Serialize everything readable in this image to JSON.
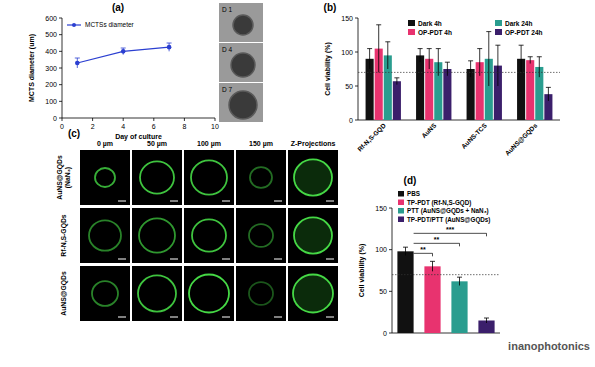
{
  "chart_data": [
    {
      "type": "line",
      "title": "(a)",
      "x": [
        1,
        4,
        7
      ],
      "series": [
        {
          "name": "MCTSs diameter",
          "color": "#2b3fd1",
          "values": [
            330,
            400,
            425
          ],
          "errors": [
            30,
            20,
            25
          ],
          "marker": "circle",
          "line_style": "solid"
        }
      ],
      "xlim": [
        0,
        10
      ],
      "xticks": [
        0,
        2,
        4,
        6,
        8,
        10
      ],
      "ylim": [
        0,
        600
      ],
      "yticks": [
        0,
        100,
        200,
        300,
        400,
        500,
        600
      ],
      "x_label": "Day of culture",
      "y_label": "MCTS diameter (um)",
      "legend": "upper left",
      "insets": [
        "D 1",
        "D 4",
        "D 7"
      ]
    },
    {
      "type": "bar",
      "title": "(b)",
      "categories": [
        "Rf-N,S-GQD",
        "AuNS",
        "AuNS-TCS",
        "AuNS@GQDs"
      ],
      "series": [
        {
          "name": "Dark 4h",
          "color": "#111111",
          "values": [
            90,
            95,
            75,
            90
          ],
          "errors": [
            15,
            10,
            12,
            20
          ]
        },
        {
          "name": "OP-PDT 4h",
          "color": "#e8336f",
          "values": [
            105,
            90,
            85,
            88
          ],
          "errors": [
            35,
            15,
            20,
            5
          ]
        },
        {
          "name": "Dark 24h",
          "color": "#2a9d8f",
          "values": [
            95,
            85,
            90,
            78
          ],
          "errors": [
            20,
            20,
            40,
            15
          ]
        },
        {
          "name": "OP-PDT 24h",
          "color": "#3b1f6b",
          "values": [
            57,
            75,
            80,
            38
          ],
          "errors": [
            5,
            10,
            30,
            10
          ]
        }
      ],
      "ylim": [
        0,
        150
      ],
      "yticks": [
        0,
        50,
        100,
        150
      ],
      "y_label": "Cell viability (%)",
      "reference_line": 70,
      "legend": "upper right"
    },
    {
      "type": "bar",
      "title": "(d)",
      "categories": [
        "PBS",
        "TP-PDT (Rf-N,S-GQD)",
        "PTT (AuNS@GQDs + NaN₃)",
        "TP-PDT/PTT (AuNS@GQDs)"
      ],
      "values": [
        98,
        80,
        62,
        15
      ],
      "errors": [
        5,
        6,
        5,
        3
      ],
      "colors": [
        "#111111",
        "#e8336f",
        "#2a9d8f",
        "#3b1f6b"
      ],
      "ylim": [
        0,
        150
      ],
      "yticks": [
        0,
        50,
        100,
        150
      ],
      "y_label": "Cell viability (%)",
      "reference_line": 70,
      "legend": "top",
      "tick_labels": "y",
      "annotations": [
        {
          "text": "**",
          "pair": [
            0,
            1
          ]
        },
        {
          "text": "**",
          "pair": [
            0,
            2
          ]
        },
        {
          "text": "***",
          "pair": [
            0,
            3
          ]
        }
      ]
    }
  ],
  "image_grid": {
    "label": "(c)",
    "columns": [
      "0 µm",
      "50 µm",
      "100 µm",
      "150 µm",
      "Z-Projections"
    ],
    "rows": [
      [
        "AuNS@GQDs",
        "(NaN₃)"
      ],
      [
        "Rf-N,S-GQDs"
      ],
      [
        "AuNS@GQDs"
      ]
    ]
  },
  "watermark": "inanophotonics"
}
